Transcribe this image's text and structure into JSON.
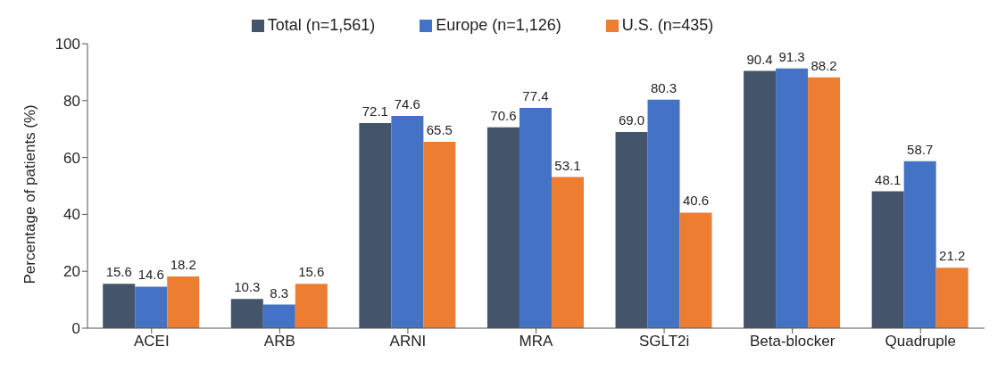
{
  "chart_data": {
    "type": "bar",
    "ylabel": "Percentage of patients (%)",
    "categories": [
      "ACEI",
      "ARB",
      "ARNI",
      "MRA",
      "SGLT2i",
      "Beta-blocker",
      "Quadruple"
    ],
    "series": [
      {
        "name": "Total (n=1,561)",
        "color": "#44546a",
        "values": [
          15.6,
          10.3,
          72.1,
          70.6,
          69.0,
          90.4,
          48.1
        ],
        "value_labels": [
          "15.6",
          "10.3",
          "72.1",
          "70.6",
          "69.0",
          "90.4",
          "48.1"
        ]
      },
      {
        "name": "Europe (n=1,126)",
        "color": "#4472c4",
        "values": [
          14.6,
          8.3,
          74.6,
          77.4,
          80.3,
          91.3,
          58.7
        ],
        "value_labels": [
          "14.6",
          "8.3",
          "74.6",
          "77.4",
          "80.3",
          "91.3",
          "58.7"
        ]
      },
      {
        "name": "U.S. (n=435)",
        "color": "#ed7d31",
        "values": [
          18.2,
          15.6,
          65.5,
          53.1,
          40.6,
          88.2,
          21.2
        ],
        "value_labels": [
          "18.2",
          "15.6",
          "65.5",
          "53.1",
          "40.6",
          "88.2",
          "21.2"
        ]
      }
    ],
    "ylim": [
      0,
      100
    ],
    "yticks": [
      0,
      20,
      40,
      60,
      80,
      100
    ],
    "grid": false,
    "legend": "top"
  }
}
